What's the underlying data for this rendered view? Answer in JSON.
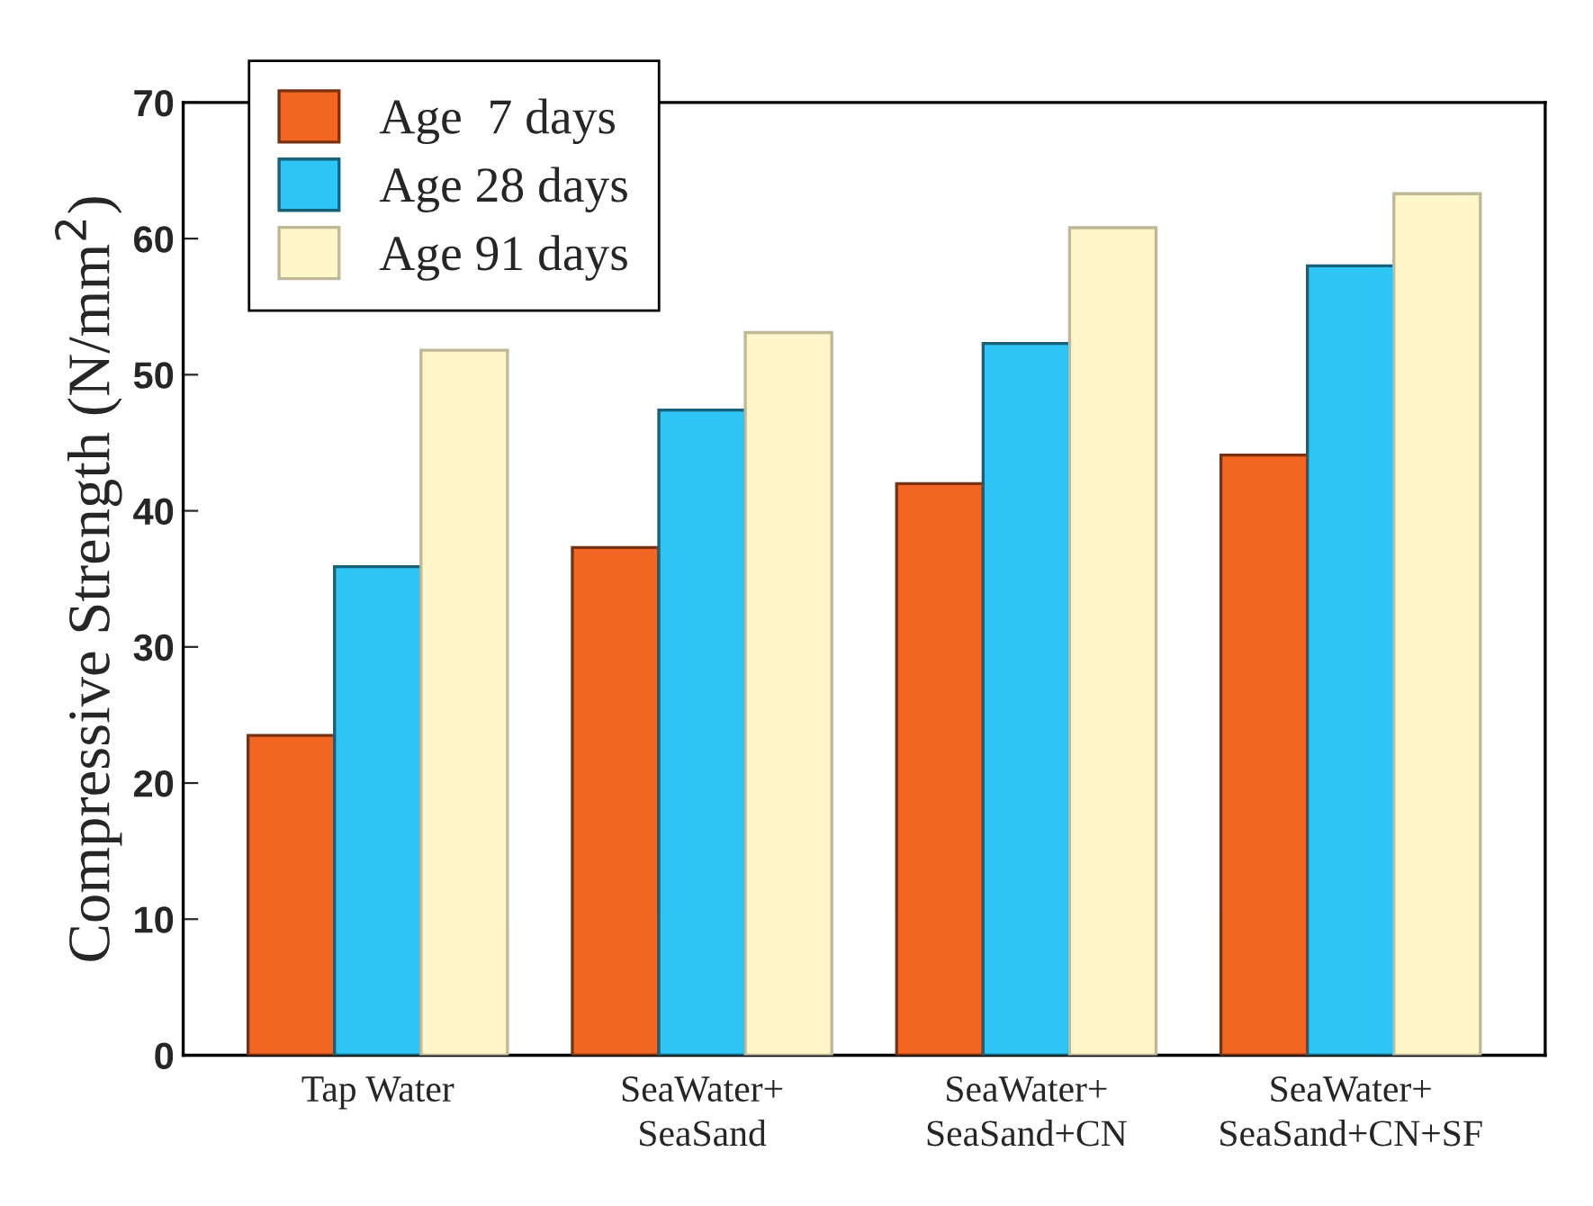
{
  "chart_data": {
    "type": "bar",
    "ylabel": "Compressive Strength (N/mm$^{2}$)",
    "categories": [
      "Tap Water",
      "SeaWater+\nSeaSand",
      "SeaWater+\nSeaSand+CN",
      "SeaWater+\nSeaSand+CN+SF"
    ],
    "series": [
      {
        "name": "Age  7 days",
        "color": "#f26522",
        "values": [
          23.5,
          37.3,
          42.0,
          44.1
        ]
      },
      {
        "name": "Age 28 days",
        "color": "#2ec4f3",
        "values": [
          35.9,
          47.4,
          52.3,
          58.0
        ]
      },
      {
        "name": "Age 91 days",
        "color": "#fff6c9",
        "values": [
          51.8,
          53.1,
          60.8,
          63.3
        ]
      }
    ],
    "ylim": [
      0,
      70
    ],
    "yticks": [
      0,
      10,
      20,
      30,
      40,
      50,
      60,
      70
    ],
    "grid": false,
    "legend": "top left"
  }
}
